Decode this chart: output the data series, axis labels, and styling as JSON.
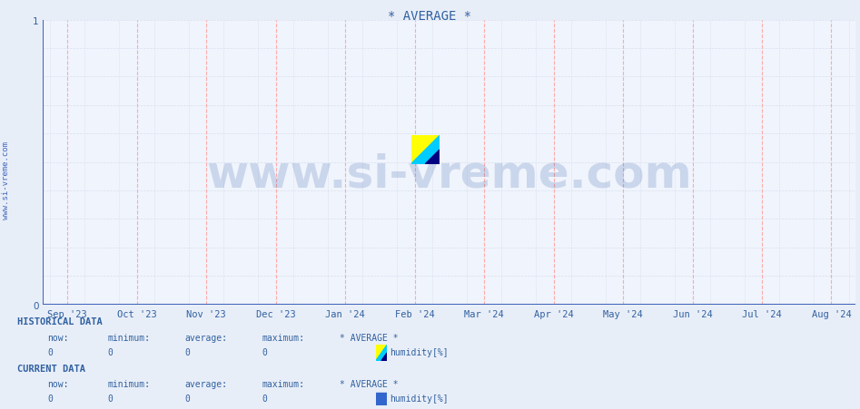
{
  "title": "* AVERAGE *",
  "title_color": "#3060a0",
  "title_fontsize": 10,
  "bg_color": "#e8eef8",
  "plot_bg_color": "#f0f4fc",
  "ylim": [
    0,
    1
  ],
  "yticks": [
    0,
    1
  ],
  "x_tick_labels": [
    "Sep '23",
    "Oct '23",
    "Nov '23",
    "Dec '23",
    "Jan '24",
    "Feb '24",
    "Mar '24",
    "Apr '24",
    "May '24",
    "Jun '24",
    "Jul '24",
    "Aug '24"
  ],
  "x_tick_positions": [
    0,
    1,
    2,
    3,
    4,
    5,
    6,
    7,
    8,
    9,
    10,
    11
  ],
  "grid_color_major": "#ffaaaa",
  "grid_color_minor": "#d8e0ee",
  "axis_color": "#4466bb",
  "watermark_text": "www.si-vreme.com",
  "watermark_color": "#2050a0",
  "watermark_alpha": 0.18,
  "watermark_fontsize": 36,
  "sidebar_text": "www.si-vreme.com",
  "sidebar_color": "#4466bb",
  "sidebar_fontsize": 6.5,
  "hist_label": "HISTORICAL DATA",
  "curr_label": "CURRENT DATA",
  "data_headers": [
    "now:",
    "minimum:",
    "average:",
    "maximum:",
    "* AVERAGE *"
  ],
  "data_values": [
    "0",
    "0",
    "0",
    "0"
  ],
  "series_label": "humidity[%]",
  "label_color": "#3060a0",
  "label_fontsize": 7.5,
  "section_fontsize": 7.5,
  "icon_yellow": "#ffff00",
  "icon_cyan": "#00ccff",
  "icon_darkblue": "#000080",
  "icon_curr": "#3366cc"
}
